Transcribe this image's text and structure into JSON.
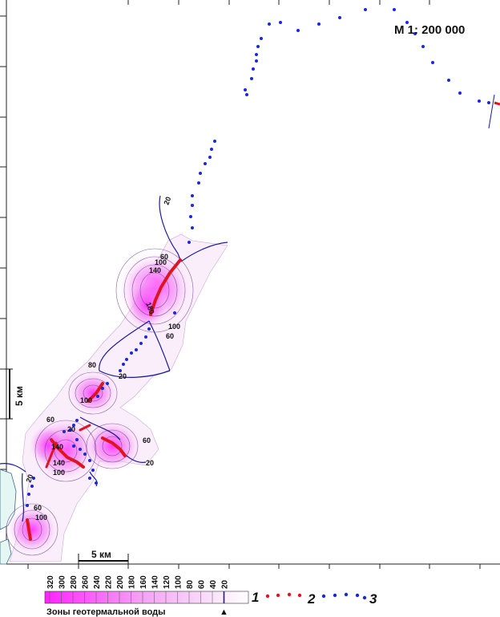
{
  "map": {
    "scale_label": "М 1: 200 000",
    "km_label_vertical": "5 км",
    "km_label_horizontal": "5 км",
    "colors": {
      "zone_max": "#ff33ff",
      "zone_min": "#ffffff",
      "isoline_20": "#1a1aa0",
      "well_red": "#e0141e",
      "well_blue": "#1a2ad0"
    },
    "contour_values": [
      "20",
      "60",
      "80",
      "100",
      "140",
      "180"
    ]
  },
  "legend": {
    "title": "Зоны геотермальной воды",
    "arrow_glyph": "▲",
    "ramp_values": [
      "320",
      "300",
      "280",
      "260",
      "240",
      "220",
      "200",
      "180",
      "160",
      "140",
      "120",
      "100",
      "80",
      "60",
      "40",
      "20"
    ],
    "item_1": "1",
    "item_2": "2",
    "item_3": "3"
  }
}
